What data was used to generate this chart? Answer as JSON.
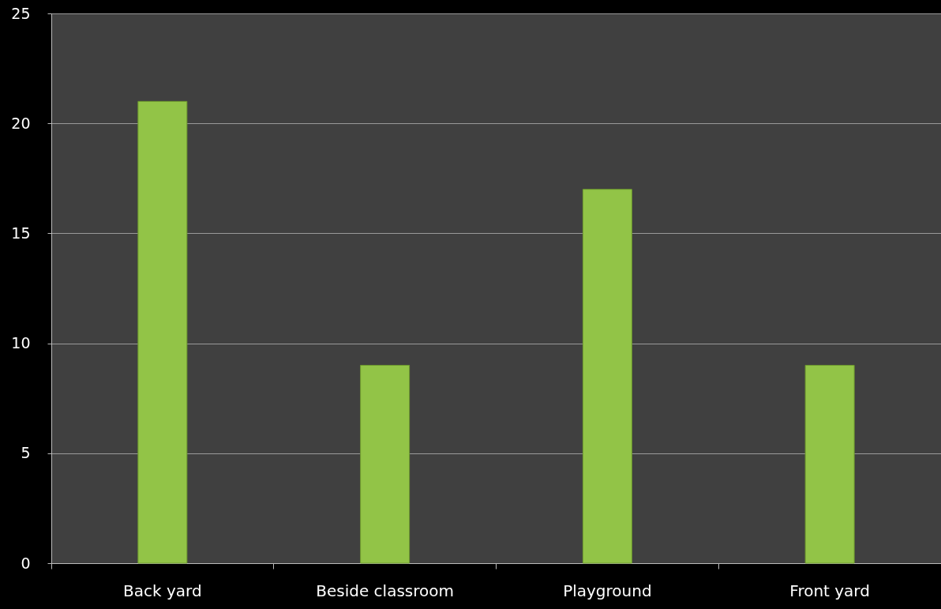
{
  "chart_data": {
    "type": "bar",
    "categories": [
      "Back yard",
      "Beside classroom",
      "Playground",
      "Front yard"
    ],
    "values": [
      21,
      9,
      17,
      9
    ],
    "color": "#92c447",
    "ylim": [
      0,
      25
    ],
    "yticks": [
      0,
      5,
      10,
      15,
      20,
      25
    ],
    "grid": "y"
  }
}
